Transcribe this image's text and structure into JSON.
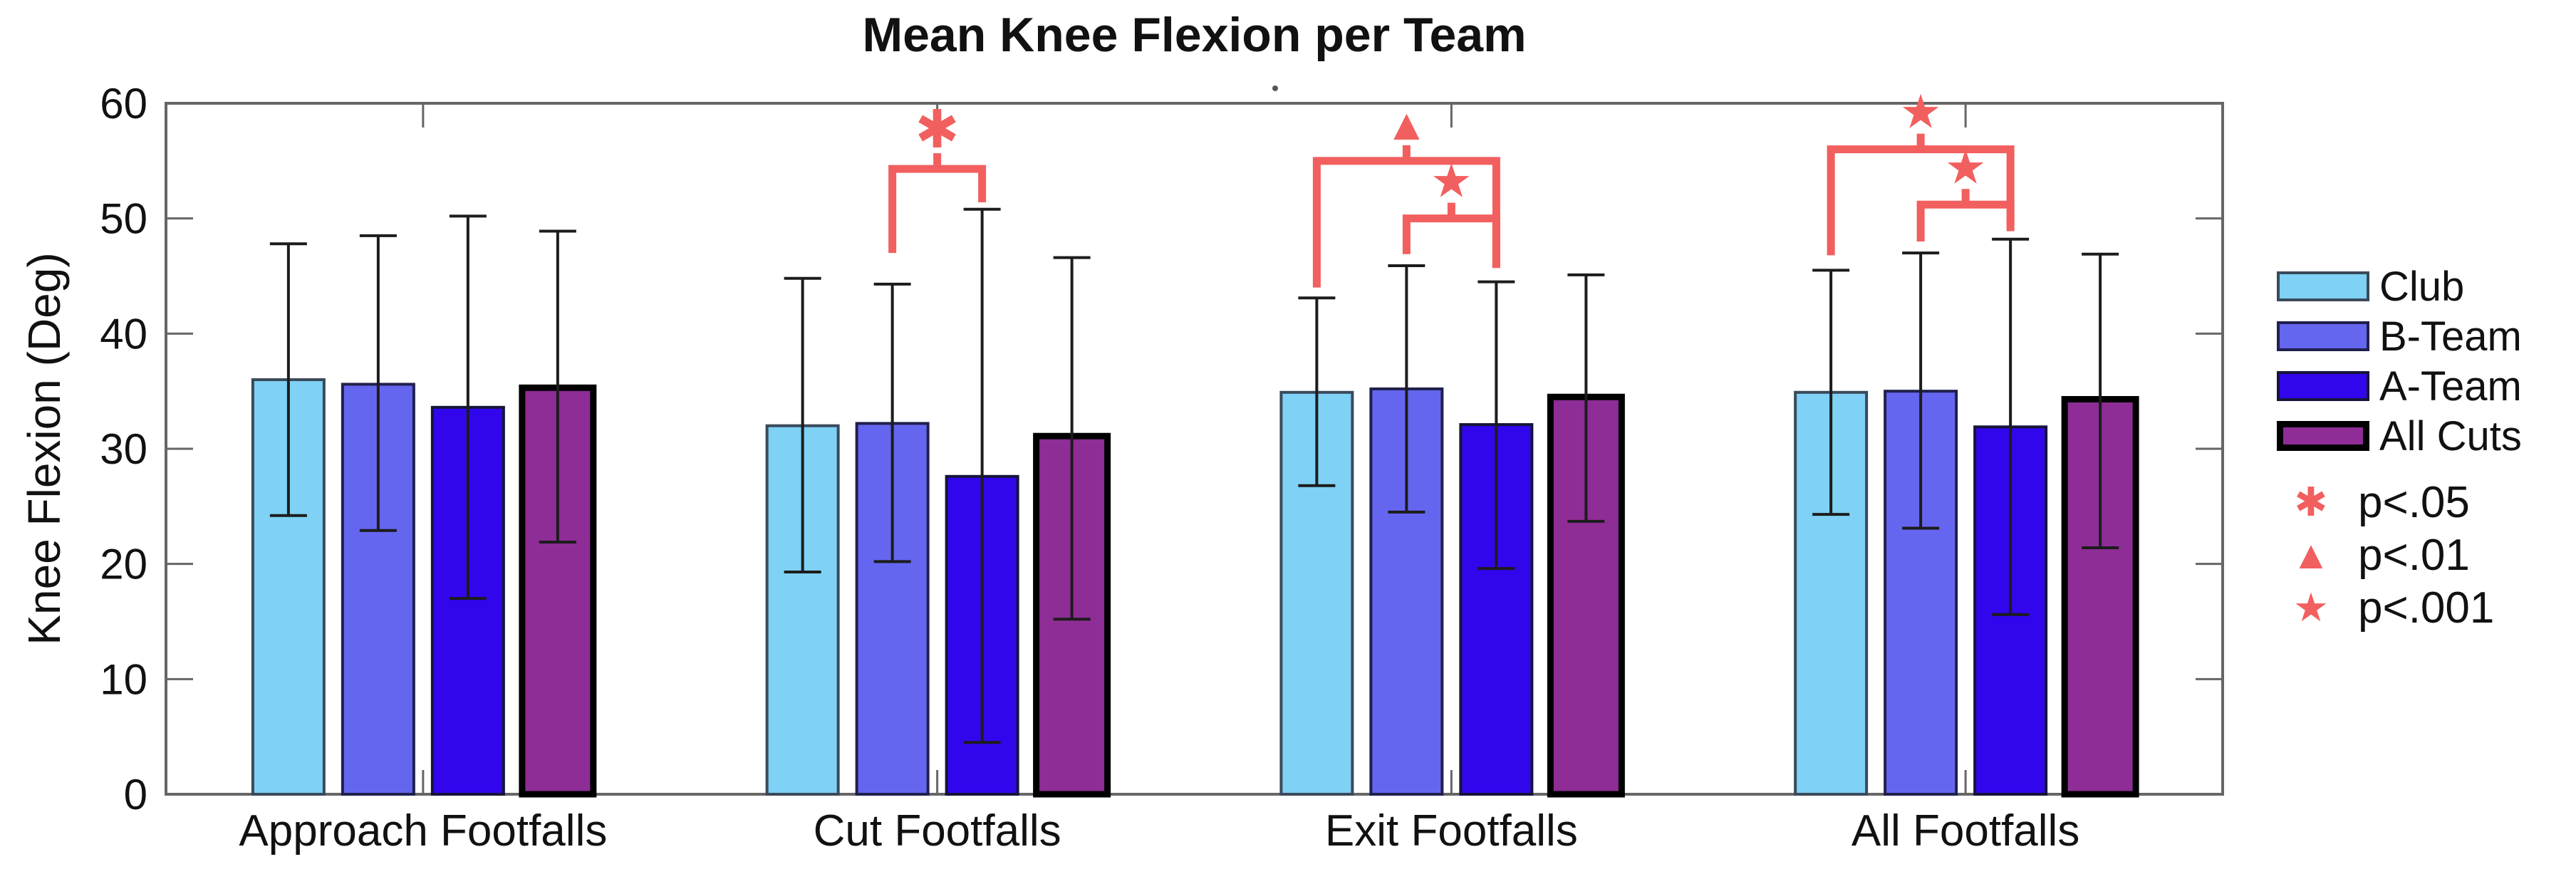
{
  "chart_data": {
    "type": "bar",
    "title": "Mean Knee Flexion per Team",
    "ylabel": "Knee Flexion (Deg)",
    "xlabel": "",
    "ylim": [
      0,
      60
    ],
    "yticks": [
      0,
      10,
      20,
      30,
      40,
      50,
      60
    ],
    "grid": false,
    "legend_position": "right-outside",
    "categories": [
      "Approach Footfalls",
      "Cut Footfalls",
      "Exit Footfalls",
      "All Footfalls"
    ],
    "series": [
      {
        "name": "Club",
        "fill": "#7FD1F5",
        "border": "#3a4a5a",
        "border_width": 4,
        "values": [
          36.0,
          32.0,
          34.9,
          34.9
        ],
        "err_high": [
          47.8,
          44.8,
          43.1,
          45.5
        ],
        "err_low": [
          24.2,
          19.3,
          26.8,
          24.3
        ]
      },
      {
        "name": "B-Team",
        "fill": "#6566EF",
        "border": "#20204d",
        "border_width": 4,
        "values": [
          35.6,
          32.2,
          35.2,
          35.0
        ],
        "err_high": [
          48.5,
          44.3,
          45.9,
          47.0
        ],
        "err_low": [
          22.9,
          20.2,
          24.5,
          23.1
        ]
      },
      {
        "name": "A-Team",
        "fill": "#3206EC",
        "border": "#15153a",
        "border_width": 4,
        "values": [
          33.6,
          27.6,
          32.1,
          31.9
        ],
        "err_high": [
          50.2,
          50.8,
          44.5,
          48.2
        ],
        "err_low": [
          17.0,
          4.5,
          19.6,
          15.6
        ]
      },
      {
        "name": "All Cuts",
        "fill": "#8E2D96",
        "border": "#000000",
        "border_width": 9,
        "values": [
          35.3,
          31.1,
          34.5,
          34.3
        ],
        "err_high": [
          48.9,
          46.6,
          45.1,
          46.9
        ],
        "err_low": [
          21.9,
          15.2,
          23.7,
          21.4
        ]
      }
    ],
    "significance_markers": [
      {
        "category": "Cut Footfalls",
        "between": [
          "B-Team",
          "A-Team"
        ],
        "symbol": "✱",
        "meaning": "p<.05",
        "bar_y": 54.3,
        "left_drop": 47.0,
        "right_drop": 51.4
      },
      {
        "category": "Exit Footfalls",
        "between": [
          "Club",
          "A-Team"
        ],
        "symbol": "▲",
        "meaning": "p<.01",
        "bar_y": 55.0,
        "left_drop": 44.0,
        "right_drop": 45.7
      },
      {
        "category": "Exit Footfalls",
        "between": [
          "B-Team",
          "A-Team"
        ],
        "symbol": "★",
        "meaning": "p<.001",
        "bar_y": 50.0,
        "left_drop": 46.9,
        "right_drop": 45.7
      },
      {
        "category": "All Footfalls",
        "between": [
          "Club",
          "A-Team"
        ],
        "symbol": "★",
        "meaning": "p<.001",
        "bar_y": 56.0,
        "left_drop": 46.8,
        "right_drop": 49.4
      },
      {
        "category": "All Footfalls",
        "between": [
          "B-Team",
          "A-Team"
        ],
        "symbol": "★",
        "meaning": "p<.001",
        "bar_y": 51.2,
        "left_drop": 48.0,
        "right_drop": 48.9
      }
    ],
    "sig_legend": [
      {
        "symbol": "✱",
        "label": "p<.05"
      },
      {
        "symbol": "▲",
        "label": "p<.01"
      },
      {
        "symbol": "★",
        "label": "p<.001"
      }
    ],
    "colors": {
      "significance": "#F25F5F",
      "axis": "#666666",
      "error_bar": "#1c1c1c",
      "tick_label": "#111111"
    }
  }
}
